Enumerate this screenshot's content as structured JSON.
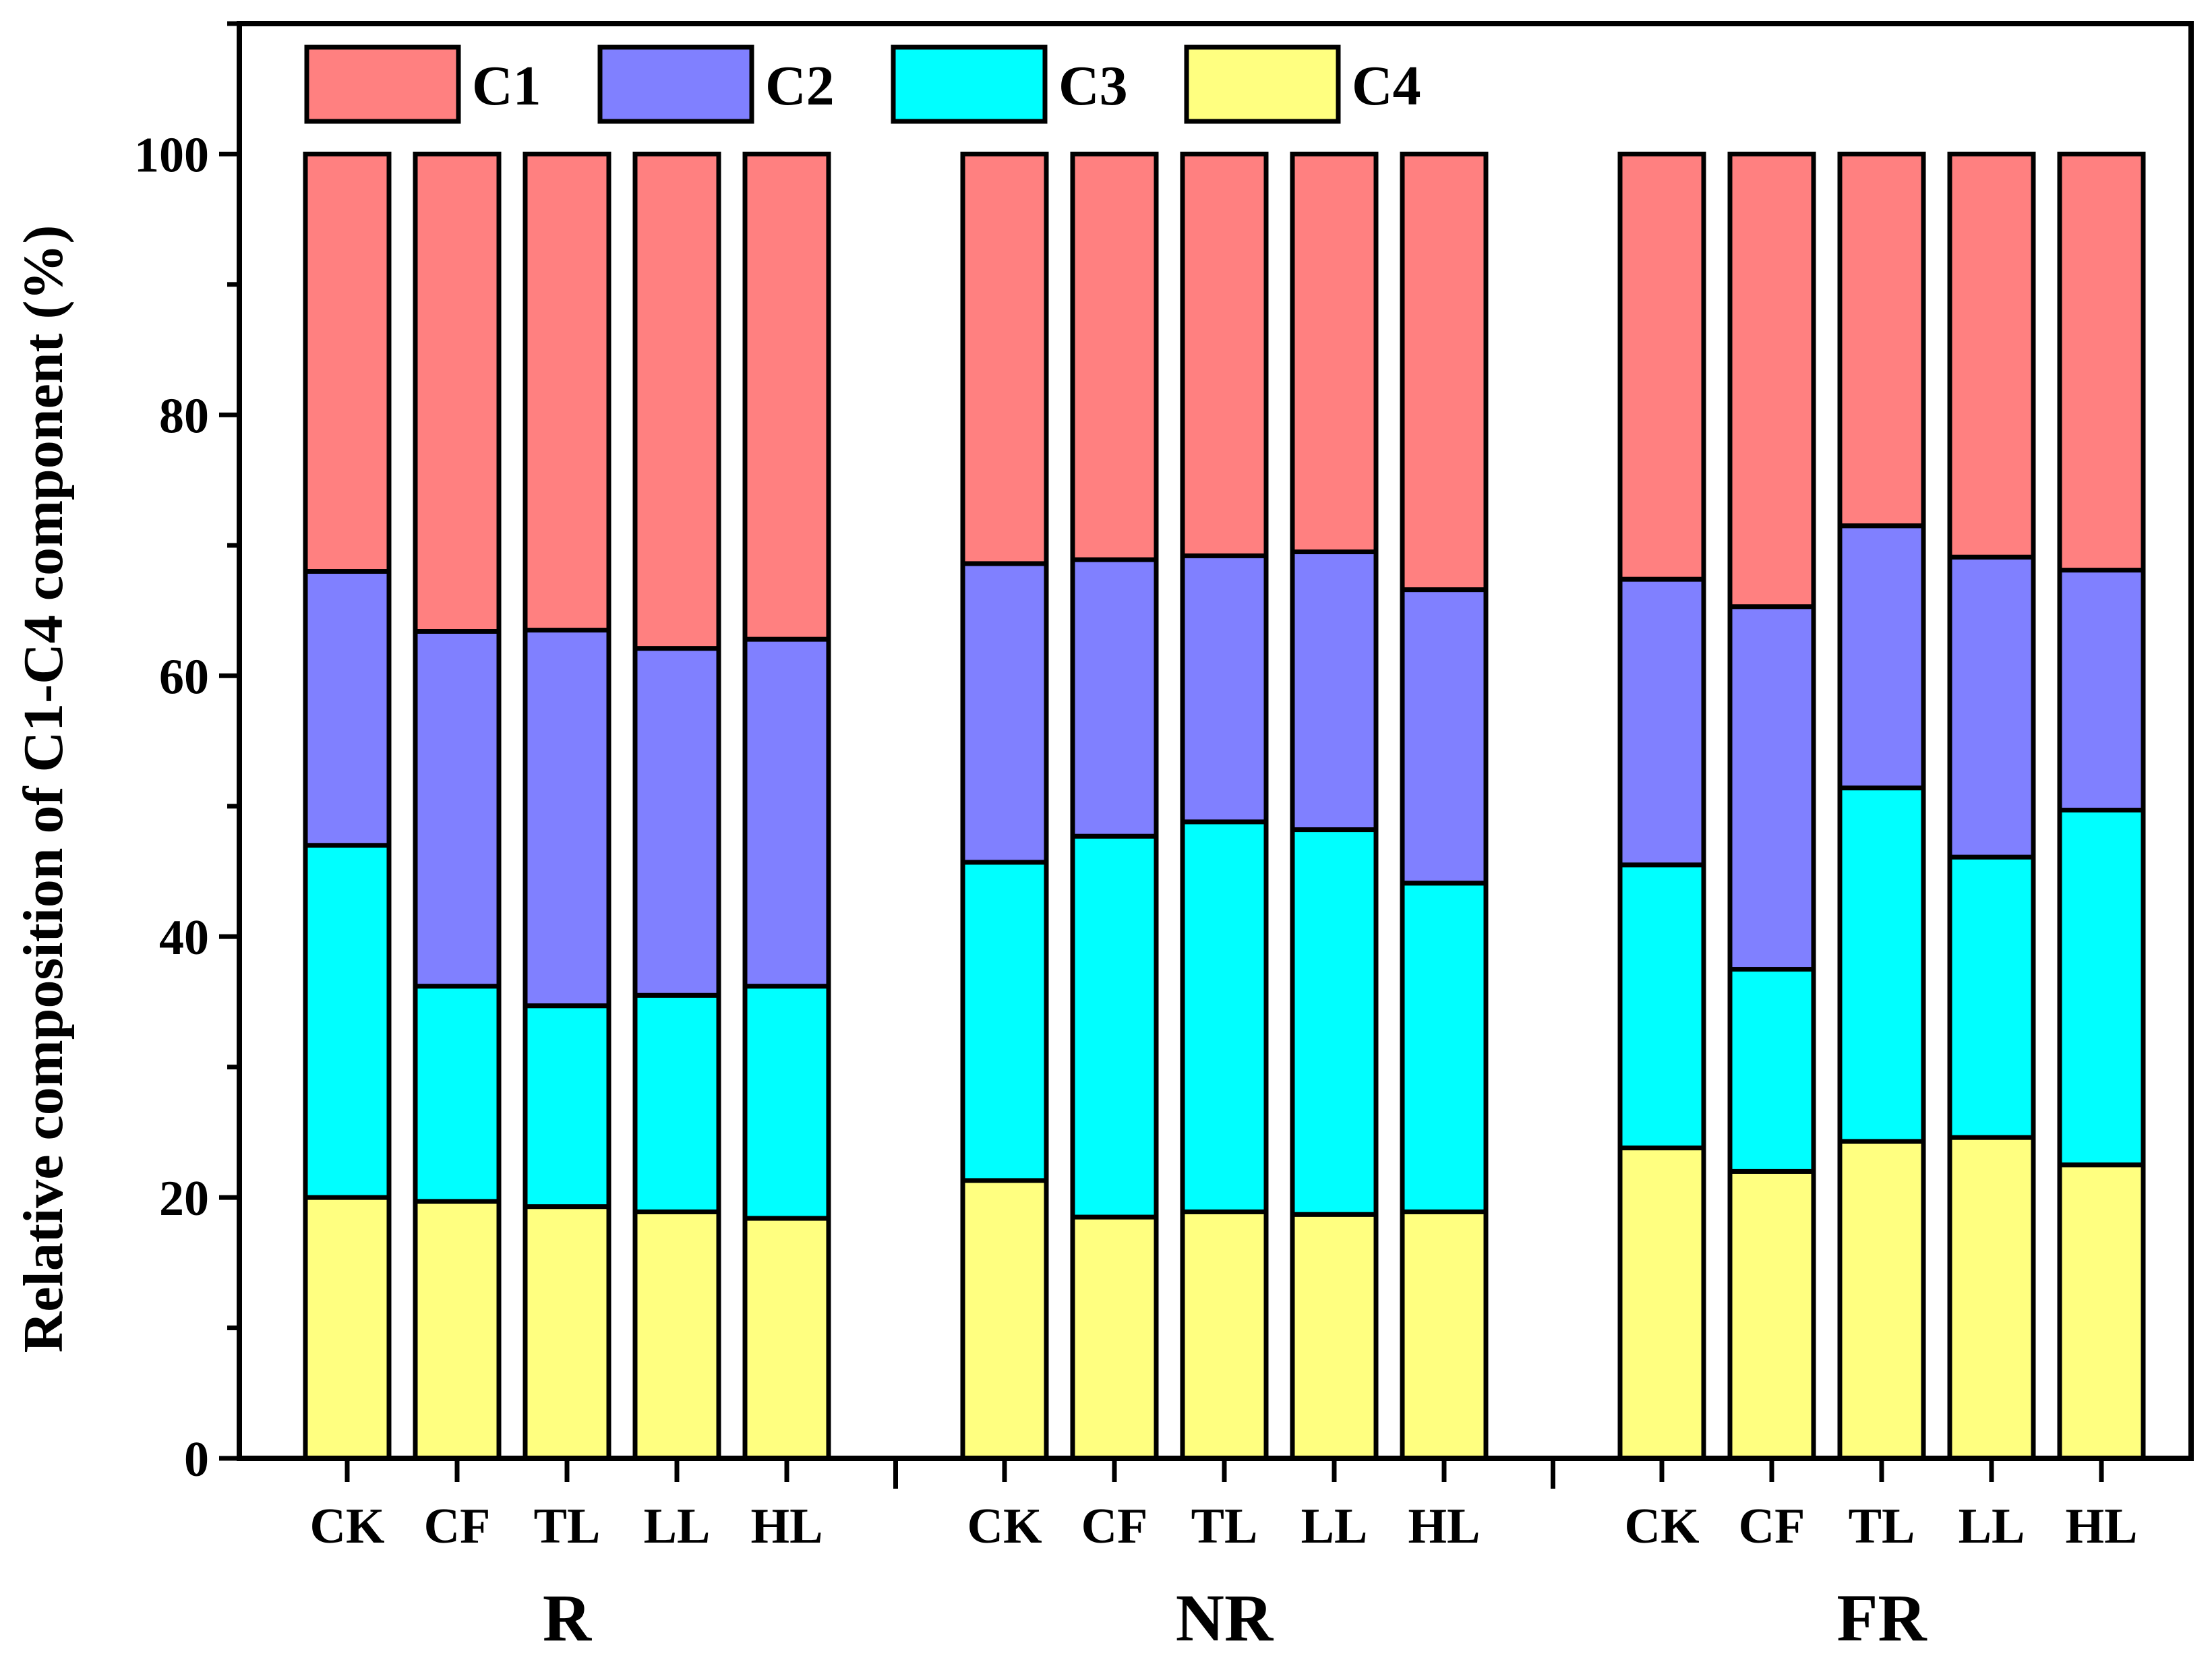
{
  "chart_data": {
    "type": "bar",
    "stacked": true,
    "title": "",
    "xlabel": "",
    "ylabel": "Relative composition of C1-C4 component (%)",
    "ylim": [
      0,
      110
    ],
    "yticks": [
      0,
      20,
      40,
      60,
      80,
      100
    ],
    "ytick_labels": [
      "0",
      "20",
      "40",
      "60",
      "80",
      "100"
    ],
    "legend_position": "top-left",
    "groups": [
      {
        "name": "R",
        "categories": [
          "CK",
          "CF",
          "TL",
          "LL",
          "HL"
        ],
        "series": [
          {
            "name": "C4",
            "values": [
              20.0,
              19.7,
              19.3,
              18.9,
              18.4
            ]
          },
          {
            "name": "C3",
            "values": [
              27.0,
              16.5,
              15.4,
              16.6,
              17.8
            ]
          },
          {
            "name": "C2",
            "values": [
              21.0,
              27.2,
              28.8,
              26.6,
              26.6
            ]
          },
          {
            "name": "C1",
            "values": [
              32.0,
              36.6,
              36.5,
              37.9,
              37.2
            ]
          }
        ]
      },
      {
        "name": "NR",
        "categories": [
          "CK",
          "CF",
          "TL",
          "LL",
          "HL"
        ],
        "series": [
          {
            "name": "C4",
            "values": [
              21.3,
              18.5,
              18.9,
              18.7,
              18.9
            ]
          },
          {
            "name": "C3",
            "values": [
              24.4,
              29.2,
              29.9,
              29.5,
              25.2
            ]
          },
          {
            "name": "C2",
            "values": [
              22.9,
              21.2,
              20.4,
              21.3,
              22.5
            ]
          },
          {
            "name": "C1",
            "values": [
              31.4,
              31.1,
              30.8,
              30.5,
              33.4
            ]
          }
        ]
      },
      {
        "name": "FR",
        "categories": [
          "CK",
          "CF",
          "TL",
          "LL",
          "HL"
        ],
        "series": [
          {
            "name": "C4",
            "values": [
              23.8,
              22.0,
              24.3,
              24.6,
              22.5
            ]
          },
          {
            "name": "C3",
            "values": [
              21.7,
              15.5,
              27.1,
              21.5,
              27.2
            ]
          },
          {
            "name": "C2",
            "values": [
              21.9,
              27.8,
              20.1,
              23.0,
              18.4
            ]
          },
          {
            "name": "C1",
            "values": [
              32.6,
              34.7,
              28.5,
              30.9,
              31.9
            ]
          }
        ]
      }
    ],
    "legend": [
      {
        "name": "C1",
        "color": "#ff8080"
      },
      {
        "name": "C2",
        "color": "#8080ff"
      },
      {
        "name": "C3",
        "color": "#00ffff"
      },
      {
        "name": "C4",
        "color": "#ffff80"
      }
    ]
  }
}
